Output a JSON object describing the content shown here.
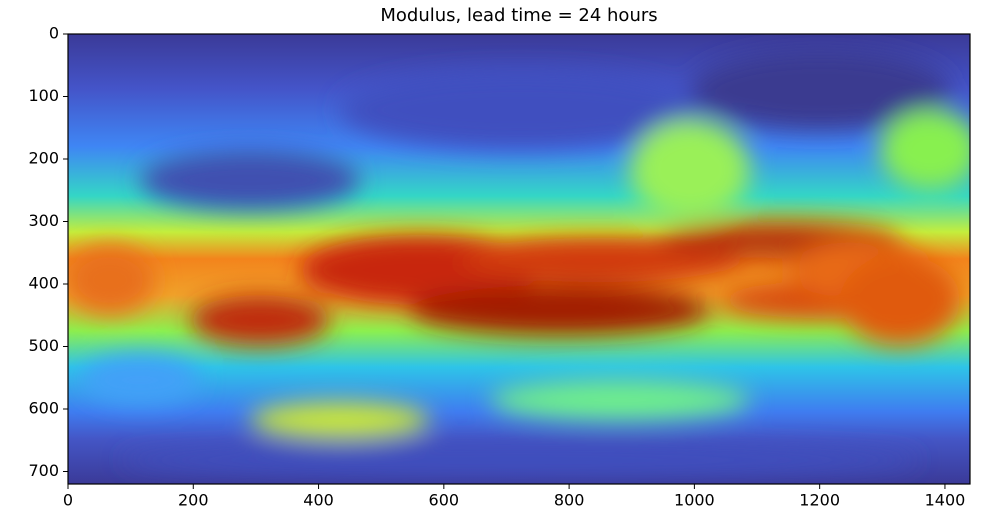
{
  "chart_data": {
    "type": "image",
    "title": "Modulus, lead time = 24 hours",
    "xlim": [
      0,
      1440
    ],
    "xticks": [
      0,
      200,
      400,
      600,
      800,
      1000,
      1200,
      1400
    ],
    "ylim": [
      0,
      720
    ],
    "y_inverted": true,
    "yticks": [
      0,
      100,
      200,
      300,
      400,
      500,
      600,
      700
    ],
    "colormap": "turbo"
  }
}
